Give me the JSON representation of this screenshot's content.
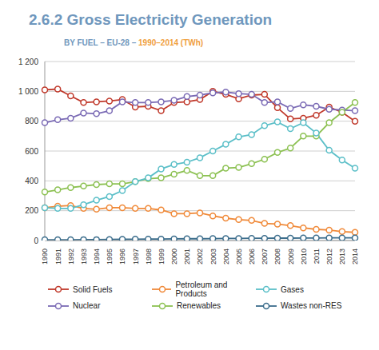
{
  "chart_data": {
    "type": "line",
    "title": "2.6.2 Gross Electricity Generation",
    "subtitle_parts": [
      "BY FUEL – EU-28 –",
      "1990–2014 (TWh)"
    ],
    "categories": [
      "1990",
      "1991",
      "1992",
      "1993",
      "1994",
      "1995",
      "1996",
      "1997",
      "1998",
      "1999",
      "2000",
      "2001",
      "2002",
      "2003",
      "2004",
      "2005",
      "2006",
      "2007",
      "2008",
      "2009",
      "2010",
      "2011",
      "2012",
      "2013",
      "2014"
    ],
    "series": [
      {
        "name": "Solid Fuels",
        "color": "#c0392b",
        "marker": "circle",
        "values": [
          1010,
          1015,
          970,
          925,
          930,
          935,
          945,
          895,
          900,
          870,
          925,
          930,
          945,
          1000,
          980,
          950,
          975,
          980,
          890,
          815,
          820,
          840,
          895,
          860,
          800
        ]
      },
      {
        "name": "Nuclear",
        "color": "#7b6bb5",
        "marker": "circle",
        "values": [
          790,
          810,
          820,
          855,
          850,
          870,
          930,
          925,
          925,
          930,
          940,
          965,
          975,
          990,
          995,
          985,
          980,
          925,
          930,
          885,
          910,
          900,
          880,
          875,
          870
        ]
      },
      {
        "name": "Petroleum and Products",
        "color": "#f08a3a",
        "marker": "circle",
        "values": [
          220,
          230,
          235,
          215,
          210,
          220,
          220,
          215,
          215,
          205,
          180,
          180,
          185,
          165,
          150,
          140,
          135,
          115,
          110,
          100,
          85,
          75,
          70,
          60,
          55
        ]
      },
      {
        "name": "Renewables",
        "color": "#8cc152",
        "marker": "circle",
        "values": [
          325,
          340,
          355,
          365,
          375,
          380,
          380,
          395,
          415,
          420,
          445,
          470,
          435,
          435,
          485,
          490,
          515,
          545,
          590,
          620,
          700,
          700,
          790,
          860,
          925
        ]
      },
      {
        "name": "Gases",
        "color": "#5bbfc8",
        "marker": "circle",
        "values": [
          220,
          215,
          215,
          240,
          270,
          295,
          335,
          395,
          420,
          480,
          510,
          525,
          555,
          600,
          645,
          695,
          710,
          770,
          795,
          750,
          790,
          720,
          605,
          540,
          485
        ]
      },
      {
        "name": "Wastes non-RES",
        "color": "#3b6d8c",
        "marker": "circle",
        "values": [
          5,
          5,
          5,
          6,
          6,
          7,
          8,
          9,
          10,
          10,
          11,
          12,
          12,
          13,
          14,
          14,
          15,
          15,
          16,
          16,
          17,
          17,
          18,
          18,
          18
        ]
      }
    ],
    "ylim": [
      0,
      1200
    ],
    "yticks": [
      0,
      200,
      400,
      600,
      800,
      {
        "value": 1000,
        "label": "1 000"
      },
      {
        "value": 1200,
        "label": "1 200"
      }
    ],
    "grid": true,
    "legend": "bottom"
  }
}
